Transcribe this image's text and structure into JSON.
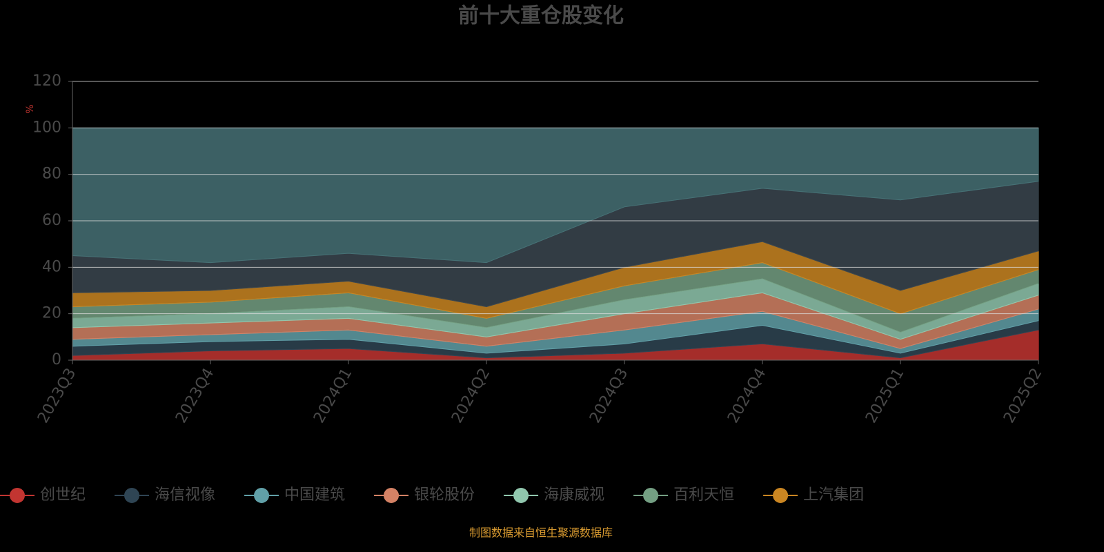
{
  "chart_data": {
    "type": "stacked_area",
    "title": "前十大重仓股变化",
    "y_label": "%",
    "footer": "制图数据来自恒生聚源数据库",
    "categories": [
      "2023Q3",
      "2023Q4",
      "2024Q1",
      "2024Q2",
      "2024Q3",
      "2024Q4",
      "2025Q1",
      "2025Q2"
    ],
    "ylim": [
      0,
      120
    ],
    "yticks": [
      0,
      20,
      40,
      60,
      80,
      100,
      120
    ],
    "grid": true,
    "series": [
      {
        "name": "创世纪",
        "color": "#c23531",
        "values": [
          2,
          4,
          5,
          1,
          3,
          7,
          1,
          13
        ]
      },
      {
        "name": "海信视像",
        "color": "#2f4554",
        "values": [
          4,
          4,
          4,
          2,
          4,
          8,
          2,
          4
        ]
      },
      {
        "name": "中国建筑",
        "color": "#61a0a8",
        "values": [
          3,
          3,
          4,
          3,
          6,
          6,
          2,
          5
        ]
      },
      {
        "name": "银轮股份",
        "color": "#d48265",
        "values": [
          5,
          5,
          5,
          4,
          7,
          8,
          4,
          6
        ]
      },
      {
        "name": "海康威视",
        "color": "#91c7ae",
        "values": [
          4,
          4,
          5,
          4,
          6,
          6,
          3,
          5
        ]
      },
      {
        "name": "百利天恒",
        "color": "#749f83",
        "values": [
          5,
          5,
          6,
          4,
          6,
          7,
          8,
          6
        ]
      },
      {
        "name": "上汽集团",
        "color": "#ca8622",
        "values": [
          6,
          5,
          5,
          5,
          8,
          9,
          10,
          8
        ]
      },
      {
        "color": "#3b4750",
        "values": [
          16,
          12,
          12,
          19,
          26,
          23,
          39,
          30
        ]
      },
      {
        "color": "#467175",
        "values": [
          55,
          58,
          54,
          58,
          34,
          26,
          31,
          23
        ]
      }
    ]
  }
}
